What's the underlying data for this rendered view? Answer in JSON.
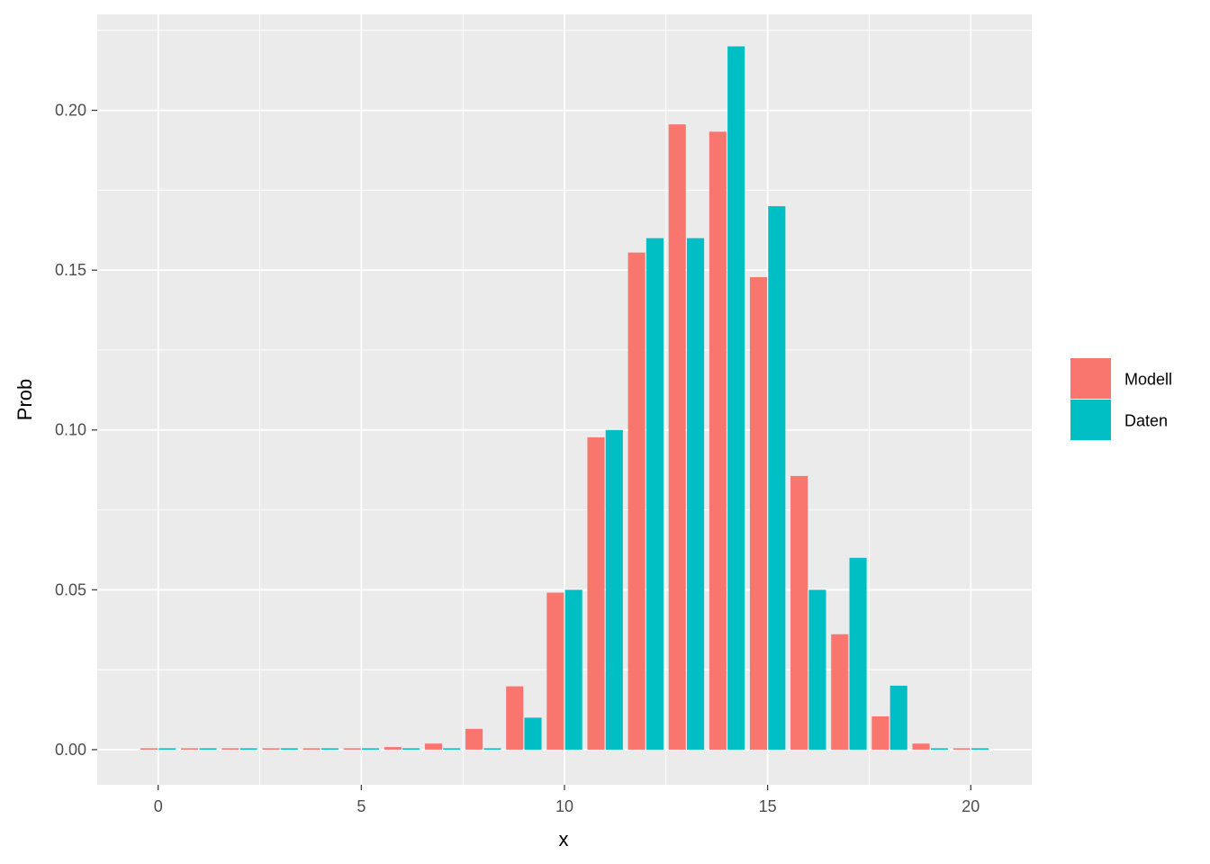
{
  "chart_data": {
    "type": "bar",
    "xlabel": "x",
    "ylabel": "Prob",
    "xlim": [
      -1.5,
      21.5
    ],
    "ylim": [
      -0.011,
      0.23
    ],
    "x_ticks": [
      0,
      5,
      10,
      15,
      20
    ],
    "y_ticks": [
      0.0,
      0.05,
      0.1,
      0.15,
      0.2
    ],
    "y_tick_labels": [
      "0.00",
      "0.05",
      "0.10",
      "0.15",
      "0.20"
    ],
    "x": [
      0,
      1,
      2,
      3,
      4,
      5,
      6,
      7,
      8,
      9,
      10,
      11,
      12,
      13,
      14,
      15,
      16,
      17,
      18,
      19,
      20
    ],
    "series": [
      {
        "name": "Modell",
        "color": "#F8766D",
        "values": [
          0.0,
          0.0,
          0.0,
          0.0,
          0.0,
          0.0002,
          0.0008,
          0.0019,
          0.0065,
          0.0198,
          0.0491,
          0.0977,
          0.1555,
          0.1956,
          0.1933,
          0.1478,
          0.0856,
          0.0361,
          0.0104,
          0.0019,
          0.0002
        ]
      },
      {
        "name": "Daten",
        "color": "#00BFC4",
        "values": [
          0.0,
          0.0,
          0.0,
          0.0,
          0.0,
          0.0,
          0.0,
          0.0,
          0.0,
          0.01,
          0.05,
          0.1,
          0.16,
          0.16,
          0.22,
          0.17,
          0.05,
          0.06,
          0.02,
          0.0,
          0.0
        ]
      }
    ],
    "legend": {
      "position": "right"
    },
    "grid": true,
    "background": "#EBEBEB"
  }
}
